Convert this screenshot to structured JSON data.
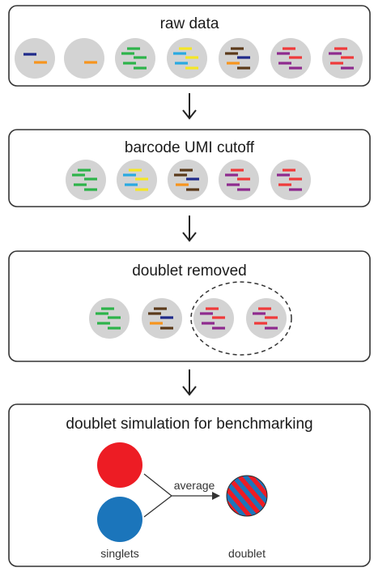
{
  "panels": [
    {
      "title": "raw data",
      "cells": [
        [
          "#1f2a8a",
          "#f7941d"
        ],
        [
          "#f7941d"
        ],
        [
          "#2db34a",
          "#2db34a",
          "#2db34a",
          "#2db34a",
          "#2db34a"
        ],
        [
          "#f5e625",
          "#29a9e1",
          "#f5e625",
          "#29a9e1",
          "#f5e625"
        ],
        [
          "#5b3a1a",
          "#5b3a1a",
          "#1f2a8a",
          "#f7941d",
          "#5b3a1a"
        ],
        [
          "#ef3a3a",
          "#8e2a8e",
          "#ef3a3a",
          "#8e2a8e",
          "#8e2a8e"
        ],
        [
          "#ef3a3a",
          "#8e2a8e",
          "#ef3a3a",
          "#ef3a3a",
          "#8e2a8e"
        ]
      ]
    },
    {
      "title": "barcode UMI cutoff",
      "cells": [
        [
          "#2db34a",
          "#2db34a",
          "#2db34a",
          "#2db34a",
          "#2db34a"
        ],
        [
          "#f5e625",
          "#29a9e1",
          "#f5e625",
          "#29a9e1",
          "#f5e625"
        ],
        [
          "#5b3a1a",
          "#5b3a1a",
          "#1f2a8a",
          "#f7941d",
          "#5b3a1a"
        ],
        [
          "#ef3a3a",
          "#8e2a8e",
          "#ef3a3a",
          "#8e2a8e",
          "#8e2a8e"
        ],
        [
          "#ef3a3a",
          "#8e2a8e",
          "#ef3a3a",
          "#ef3a3a",
          "#8e2a8e"
        ]
      ]
    },
    {
      "title": "doublet removed",
      "cells": [
        [
          "#2db34a",
          "#2db34a",
          "#2db34a",
          "#2db34a",
          "#2db34a"
        ],
        [
          "#5b3a1a",
          "#5b3a1a",
          "#1f2a8a",
          "#f7941d",
          "#5b3a1a"
        ],
        [
          "#ef3a3a",
          "#8e2a8e",
          "#ef3a3a",
          "#8e2a8e",
          "#8e2a8e"
        ],
        [
          "#ef3a3a",
          "#8e2a8e",
          "#ef3a3a",
          "#ef3a3a",
          "#8e2a8e"
        ]
      ]
    }
  ],
  "simulation": {
    "title": "doublet simulation for benchmarking",
    "arrow_label": "average",
    "singlets_label": "singlets",
    "doublet_label": "doublet",
    "colors": {
      "red": "#ed1c24",
      "blue": "#1b75bb"
    }
  },
  "colors": {
    "cell_fill": "#d3d3d3",
    "border": "#333333"
  }
}
